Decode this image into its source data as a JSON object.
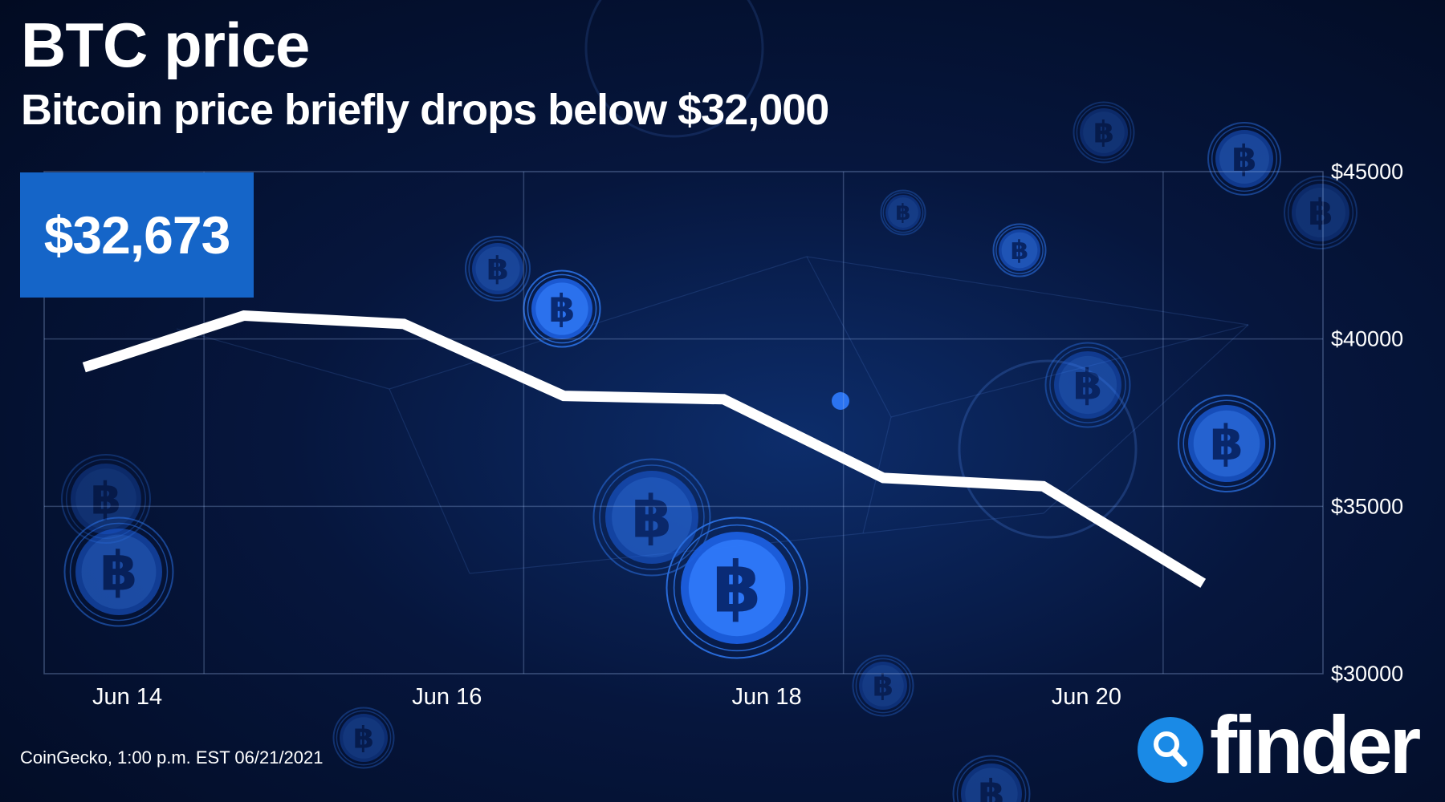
{
  "header": {
    "title": "BTC price",
    "subtitle": "Bitcoin price briefly drops below $32,000"
  },
  "price_badge": {
    "value": "$32,673"
  },
  "footer": {
    "source": "CoinGecko, 1:00 p.m. EST 06/21/2021",
    "logo_text": "finder"
  },
  "colors": {
    "background": "#06163d",
    "line": "#ffffff",
    "badge": "#1565c8",
    "logo_mark": "#1a8ae6"
  },
  "icons": {
    "background_coins": "bitcoin-coin-icon",
    "logo": "magnifier-icon"
  },
  "chart_data": {
    "type": "line",
    "title": "BTC price",
    "subtitle": "Bitcoin price briefly drops below $32,000",
    "x_tick_labels": [
      "Jun 14",
      "Jun 16",
      "Jun 18",
      "Jun 20"
    ],
    "y_tick_labels": [
      "$45000",
      "$40000",
      "$35000",
      "$30000"
    ],
    "y_ticks": [
      45000,
      40000,
      35000,
      30000
    ],
    "ylim": [
      30000,
      45000
    ],
    "x_day_range": [
      13.5,
      21.5
    ],
    "grid": true,
    "y_axis_side": "right",
    "series": [
      {
        "x": [
          13.75,
          14.75,
          15.75,
          16.75,
          17.75,
          18.75,
          19.75,
          20.75
        ],
        "values": [
          39150,
          40700,
          40450,
          38300,
          38200,
          35850,
          35600,
          32700
        ]
      }
    ]
  }
}
